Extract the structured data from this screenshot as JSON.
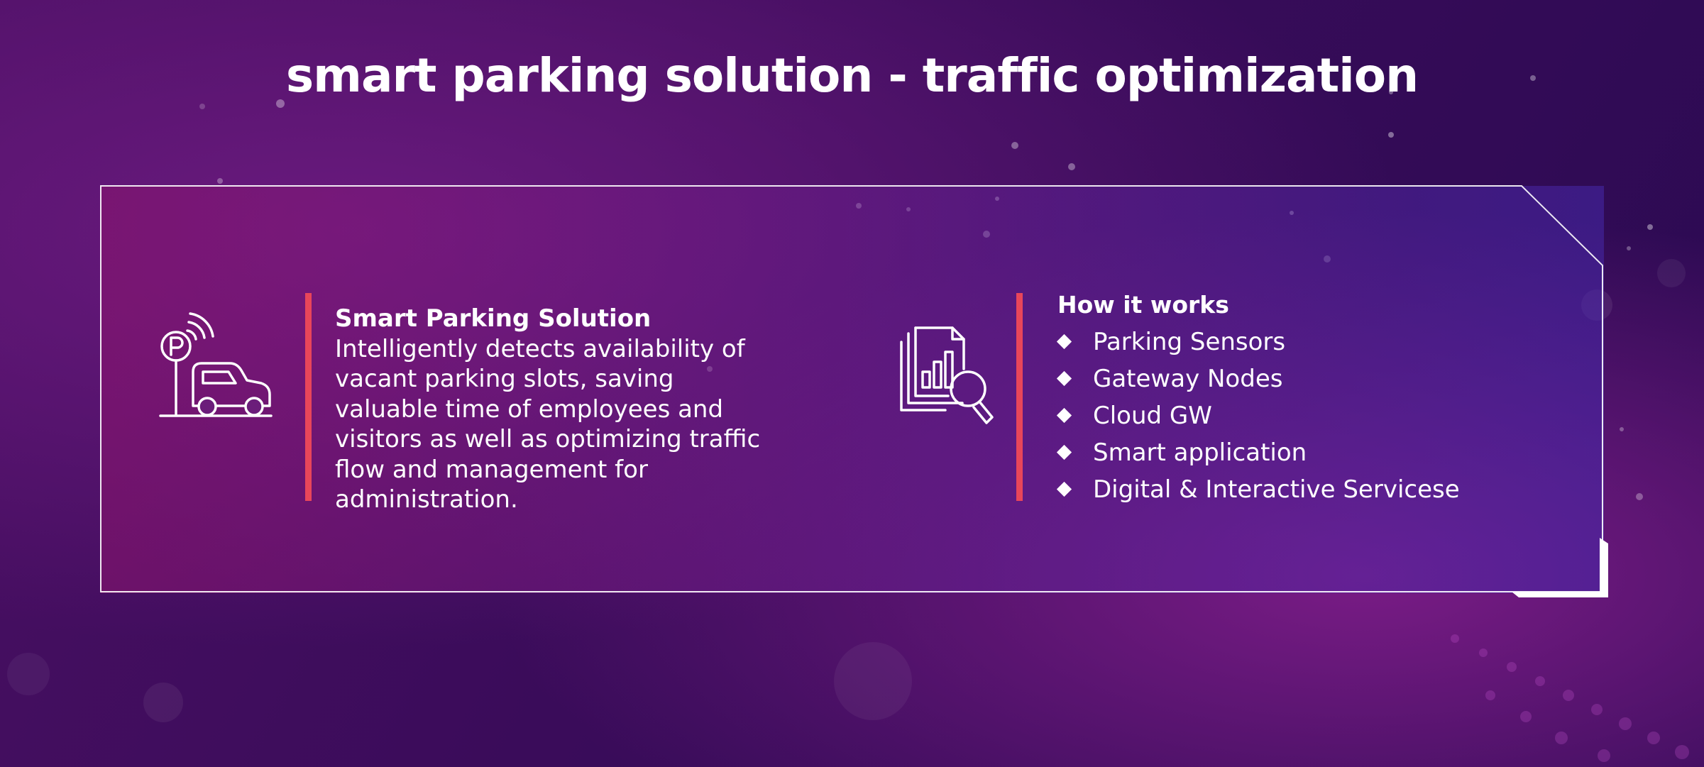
{
  "page": {
    "title": "smart parking solution - traffic optimization"
  },
  "left_section": {
    "icon": "parking-car-sensor-icon",
    "lead": "Smart Parking Solution",
    "body": " Intelligently detects availability of vacant parking slots, saving valuable time of employees and visitors as well as optimizing traffic flow and management for administration."
  },
  "right_section": {
    "icon": "report-magnifier-icon",
    "heading": "How it works",
    "items": [
      {
        "label": "Parking Sensors"
      },
      {
        "label": "Gateway Nodes"
      },
      {
        "label": "Cloud GW"
      },
      {
        "label": "Smart application"
      },
      {
        "label": "Digital & Interactive Servicese"
      }
    ]
  },
  "colors": {
    "accent": "#e8465a",
    "text": "#ffffff",
    "background_dark": "#2a0a52",
    "background_magenta": "#7a1c86"
  }
}
